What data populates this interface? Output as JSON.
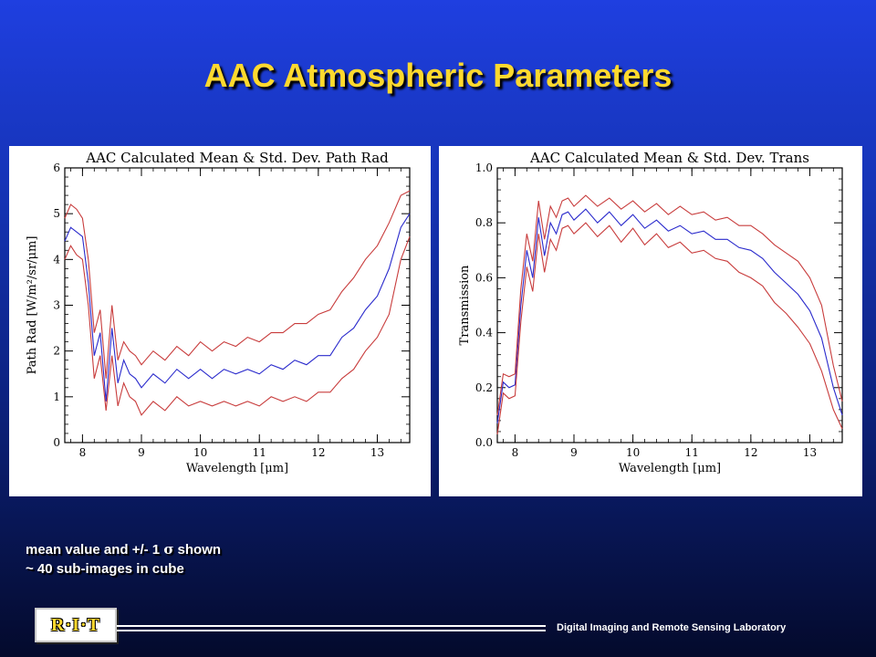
{
  "slide": {
    "title": "AAC Atmospheric Parameters",
    "note_line1_prefix": "mean value and +/- 1 ",
    "note_line1_symbol": "σ",
    "note_line1_suffix": " shown",
    "note_line2": "~ 40 sub-images in cube",
    "logo_text": "R·I·T",
    "footer_text": "Digital Imaging and Remote Sensing Laboratory"
  },
  "colors": {
    "mean": "#2a2acc",
    "std": "#c83c3c",
    "axis": "#000000"
  },
  "chart_data": [
    {
      "type": "line",
      "title": "AAC Calculated Mean & Std. Dev. Path Rad",
      "xlabel": "Wavelength [μm]",
      "ylabel": "Path Rad [W/m²/sr/μm]",
      "xlim": [
        7.7,
        13.55
      ],
      "ylim": [
        0,
        6
      ],
      "xticks": [
        8,
        9,
        10,
        11,
        12,
        13
      ],
      "yticks": [
        0,
        1,
        2,
        3,
        4,
        5,
        6
      ],
      "grid": false,
      "x": [
        7.7,
        7.8,
        7.9,
        8.0,
        8.1,
        8.2,
        8.3,
        8.4,
        8.5,
        8.6,
        8.7,
        8.8,
        8.9,
        9.0,
        9.2,
        9.4,
        9.6,
        9.8,
        10.0,
        10.2,
        10.4,
        10.6,
        10.8,
        11.0,
        11.2,
        11.4,
        11.6,
        11.8,
        12.0,
        12.2,
        12.4,
        12.6,
        12.8,
        13.0,
        13.2,
        13.4,
        13.55
      ],
      "series": [
        {
          "role": "mean",
          "values": [
            4.4,
            4.7,
            4.6,
            4.5,
            3.5,
            1.9,
            2.4,
            0.9,
            2.5,
            1.3,
            1.8,
            1.5,
            1.4,
            1.2,
            1.5,
            1.3,
            1.6,
            1.4,
            1.6,
            1.4,
            1.6,
            1.5,
            1.6,
            1.5,
            1.7,
            1.6,
            1.8,
            1.7,
            1.9,
            1.9,
            2.3,
            2.5,
            2.9,
            3.2,
            3.8,
            4.7,
            5.0
          ]
        },
        {
          "role": "mean+1sd",
          "values": [
            4.9,
            5.2,
            5.1,
            4.9,
            4.0,
            2.4,
            2.9,
            1.4,
            3.0,
            1.8,
            2.2,
            2.0,
            1.9,
            1.7,
            2.0,
            1.8,
            2.1,
            1.9,
            2.2,
            2.0,
            2.2,
            2.1,
            2.3,
            2.2,
            2.4,
            2.4,
            2.6,
            2.6,
            2.8,
            2.9,
            3.3,
            3.6,
            4.0,
            4.3,
            4.8,
            5.4,
            5.5
          ]
        },
        {
          "role": "mean-1sd",
          "values": [
            4.0,
            4.3,
            4.1,
            4.0,
            3.0,
            1.4,
            1.9,
            0.7,
            1.9,
            0.8,
            1.3,
            1.0,
            0.9,
            0.6,
            0.9,
            0.7,
            1.0,
            0.8,
            0.9,
            0.8,
            0.9,
            0.8,
            0.9,
            0.8,
            1.0,
            0.9,
            1.0,
            0.9,
            1.1,
            1.1,
            1.4,
            1.6,
            2.0,
            2.3,
            2.8,
            4.0,
            4.5
          ]
        }
      ]
    },
    {
      "type": "line",
      "title": "AAC Calculated Mean & Std. Dev. Trans",
      "xlabel": "Wavelength [μm]",
      "ylabel": "Transmission",
      "xlim": [
        7.7,
        13.55
      ],
      "ylim": [
        0,
        1.0
      ],
      "xticks": [
        8,
        9,
        10,
        11,
        12,
        13
      ],
      "yticks": [
        0.0,
        0.2,
        0.4,
        0.6,
        0.8,
        1.0
      ],
      "grid": false,
      "x": [
        7.7,
        7.8,
        7.9,
        8.0,
        8.1,
        8.2,
        8.3,
        8.4,
        8.5,
        8.6,
        8.7,
        8.8,
        8.9,
        9.0,
        9.2,
        9.4,
        9.6,
        9.8,
        10.0,
        10.2,
        10.4,
        10.6,
        10.8,
        11.0,
        11.2,
        11.4,
        11.6,
        11.8,
        12.0,
        12.2,
        12.4,
        12.6,
        12.8,
        13.0,
        13.2,
        13.4,
        13.55
      ],
      "series": [
        {
          "role": "mean",
          "values": [
            0.07,
            0.22,
            0.2,
            0.21,
            0.5,
            0.7,
            0.6,
            0.82,
            0.68,
            0.8,
            0.76,
            0.83,
            0.84,
            0.81,
            0.85,
            0.8,
            0.84,
            0.79,
            0.83,
            0.78,
            0.81,
            0.77,
            0.79,
            0.76,
            0.77,
            0.74,
            0.74,
            0.71,
            0.7,
            0.67,
            0.62,
            0.58,
            0.54,
            0.48,
            0.38,
            0.2,
            0.1
          ]
        },
        {
          "role": "mean+1sd",
          "values": [
            0.1,
            0.25,
            0.24,
            0.25,
            0.56,
            0.76,
            0.66,
            0.88,
            0.74,
            0.86,
            0.82,
            0.88,
            0.89,
            0.86,
            0.9,
            0.86,
            0.89,
            0.85,
            0.88,
            0.84,
            0.87,
            0.83,
            0.86,
            0.83,
            0.84,
            0.81,
            0.82,
            0.79,
            0.79,
            0.76,
            0.72,
            0.69,
            0.66,
            0.6,
            0.5,
            0.28,
            0.15
          ]
        },
        {
          "role": "mean-1sd",
          "values": [
            0.03,
            0.18,
            0.16,
            0.17,
            0.44,
            0.64,
            0.55,
            0.76,
            0.62,
            0.74,
            0.7,
            0.78,
            0.79,
            0.76,
            0.8,
            0.75,
            0.79,
            0.73,
            0.78,
            0.72,
            0.76,
            0.71,
            0.73,
            0.69,
            0.7,
            0.67,
            0.66,
            0.62,
            0.6,
            0.57,
            0.51,
            0.47,
            0.42,
            0.36,
            0.26,
            0.12,
            0.05
          ]
        }
      ]
    }
  ]
}
